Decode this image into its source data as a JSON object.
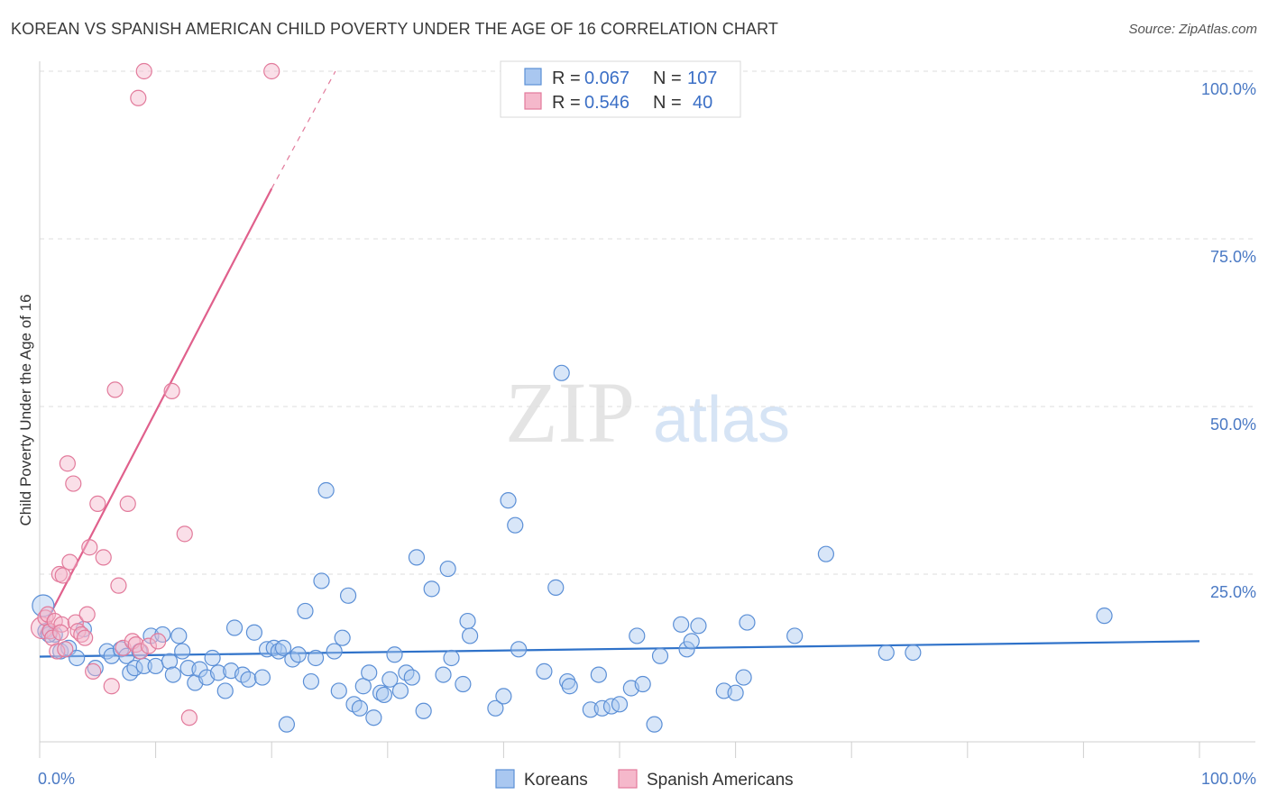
{
  "title": "KOREAN VS SPANISH AMERICAN CHILD POVERTY UNDER THE AGE OF 16 CORRELATION CHART",
  "source": "Source: ZipAtlas.com",
  "watermark": {
    "zip": "ZIP",
    "atlas": "atlas"
  },
  "colors": {
    "koreans_fill": "#a9c7f0",
    "koreans_stroke": "#5b8fd6",
    "koreans_line": "#2f72c9",
    "spanish_fill": "#f5b8cb",
    "spanish_stroke": "#e27a9b",
    "spanish_line": "#e0608c",
    "grid": "#dedede",
    "axis_text": "#4a79c4"
  },
  "legend": {
    "rows": [
      {
        "r_label": "R = ",
        "r_value": "0.067",
        "n_label": "N = ",
        "n_value": "107"
      },
      {
        "r_label": "R = ",
        "r_value": "0.546",
        "n_label": "N = ",
        "n_value": "40"
      }
    ]
  },
  "bottom_legend": [
    "Koreans",
    "Spanish Americans"
  ],
  "chart_data": {
    "type": "scatter",
    "title": "KOREAN VS SPANISH AMERICAN CHILD POVERTY UNDER THE AGE OF 16 CORRELATION CHART",
    "xlabel": "",
    "ylabel": "Child Poverty Under the Age of 16",
    "xlim": [
      0,
      100
    ],
    "ylim": [
      0,
      100
    ],
    "x_tick_labels": [
      "0.0%",
      "100.0%"
    ],
    "y_tick_labels": [
      "100.0%",
      "75.0%",
      "50.0%",
      "25.0%"
    ],
    "y_ticks": [
      100,
      75,
      50,
      25
    ],
    "grid": true,
    "legend_position": "top-center",
    "series": [
      {
        "name": "Koreans",
        "r": 0.067,
        "n": 107,
        "trend": {
          "x": [
            0,
            100
          ],
          "y": [
            12.7,
            15.0
          ]
        },
        "points": [
          [
            0.3,
            20.3
          ],
          [
            0.5,
            16.5
          ],
          [
            1.3,
            16.0
          ],
          [
            1.8,
            13.5
          ],
          [
            2.5,
            14.0
          ],
          [
            3.2,
            12.5
          ],
          [
            3.8,
            16.8
          ],
          [
            4.8,
            11.0
          ],
          [
            5.8,
            13.5
          ],
          [
            6.2,
            12.8
          ],
          [
            7.0,
            13.8
          ],
          [
            7.5,
            12.8
          ],
          [
            7.8,
            10.3
          ],
          [
            8.2,
            11.0
          ],
          [
            8.6,
            13.5
          ],
          [
            9.0,
            11.3
          ],
          [
            9.6,
            15.8
          ],
          [
            10.0,
            11.3
          ],
          [
            10.6,
            16.0
          ],
          [
            11.2,
            12.0
          ],
          [
            11.5,
            10.0
          ],
          [
            12.0,
            15.8
          ],
          [
            12.3,
            13.5
          ],
          [
            12.8,
            11.0
          ],
          [
            13.4,
            8.8
          ],
          [
            13.8,
            10.8
          ],
          [
            14.4,
            9.6
          ],
          [
            14.9,
            12.5
          ],
          [
            15.4,
            10.3
          ],
          [
            16.0,
            7.6
          ],
          [
            16.5,
            10.6
          ],
          [
            16.8,
            17.0
          ],
          [
            17.5,
            10.0
          ],
          [
            18.0,
            9.3
          ],
          [
            18.5,
            16.3
          ],
          [
            19.2,
            9.6
          ],
          [
            19.6,
            13.8
          ],
          [
            20.2,
            14.0
          ],
          [
            20.6,
            13.5
          ],
          [
            21.0,
            14.0
          ],
          [
            21.3,
            2.6
          ],
          [
            21.8,
            12.3
          ],
          [
            22.3,
            13.0
          ],
          [
            22.9,
            19.5
          ],
          [
            23.4,
            9.0
          ],
          [
            23.8,
            12.5
          ],
          [
            24.3,
            24.0
          ],
          [
            24.7,
            37.5
          ],
          [
            25.4,
            13.5
          ],
          [
            25.8,
            7.6
          ],
          [
            26.1,
            15.5
          ],
          [
            26.6,
            21.8
          ],
          [
            27.1,
            5.6
          ],
          [
            27.6,
            5.0
          ],
          [
            27.9,
            8.3
          ],
          [
            28.4,
            10.3
          ],
          [
            28.8,
            3.6
          ],
          [
            29.4,
            7.3
          ],
          [
            29.7,
            7.0
          ],
          [
            30.2,
            9.3
          ],
          [
            30.6,
            13.0
          ],
          [
            31.1,
            7.6
          ],
          [
            31.6,
            10.3
          ],
          [
            32.1,
            9.6
          ],
          [
            32.5,
            27.5
          ],
          [
            33.1,
            4.6
          ],
          [
            33.8,
            22.8
          ],
          [
            34.8,
            10.0
          ],
          [
            35.2,
            25.8
          ],
          [
            35.5,
            12.5
          ],
          [
            36.5,
            8.6
          ],
          [
            36.9,
            18.0
          ],
          [
            37.1,
            15.8
          ],
          [
            39.3,
            5.0
          ],
          [
            40.0,
            6.8
          ],
          [
            40.4,
            36.0
          ],
          [
            41.0,
            32.3
          ],
          [
            41.3,
            13.8
          ],
          [
            43.5,
            10.5
          ],
          [
            44.5,
            23.0
          ],
          [
            45.0,
            55.0
          ],
          [
            45.5,
            9.0
          ],
          [
            45.7,
            8.3
          ],
          [
            47.5,
            4.8
          ],
          [
            48.2,
            10.0
          ],
          [
            48.5,
            5.0
          ],
          [
            49.3,
            5.3
          ],
          [
            50.0,
            5.6
          ],
          [
            51.0,
            8.0
          ],
          [
            51.5,
            15.8
          ],
          [
            52.0,
            8.6
          ],
          [
            53.0,
            2.6
          ],
          [
            53.5,
            12.8
          ],
          [
            55.3,
            17.5
          ],
          [
            55.8,
            13.8
          ],
          [
            56.2,
            15.0
          ],
          [
            56.8,
            17.3
          ],
          [
            59.0,
            7.6
          ],
          [
            60.0,
            7.3
          ],
          [
            60.7,
            9.6
          ],
          [
            61.0,
            17.8
          ],
          [
            65.1,
            15.8
          ],
          [
            67.8,
            28.0
          ],
          [
            73.0,
            13.3
          ],
          [
            75.3,
            13.3
          ],
          [
            91.8,
            18.8
          ],
          [
            0.8,
            16.0
          ]
        ]
      },
      {
        "name": "Spanish Americans",
        "r": 0.546,
        "n": 40,
        "trend": {
          "x": [
            0,
            20.0
          ],
          "y": [
            16.0,
            82.5
          ]
        },
        "trend_dashed": {
          "x": [
            20.0,
            25.5
          ],
          "y": [
            82.5,
            100.0
          ]
        },
        "points": [
          [
            0.2,
            17.0
          ],
          [
            0.5,
            18.5
          ],
          [
            0.7,
            19.0
          ],
          [
            0.9,
            16.5
          ],
          [
            1.1,
            15.5
          ],
          [
            1.3,
            18.0
          ],
          [
            1.5,
            13.5
          ],
          [
            1.7,
            25.0
          ],
          [
            1.9,
            17.5
          ],
          [
            2.0,
            24.8
          ],
          [
            2.2,
            13.8
          ],
          [
            2.4,
            41.5
          ],
          [
            2.6,
            26.8
          ],
          [
            2.9,
            38.5
          ],
          [
            3.1,
            17.8
          ],
          [
            3.3,
            16.5
          ],
          [
            3.6,
            16.0
          ],
          [
            3.9,
            15.5
          ],
          [
            4.1,
            19.0
          ],
          [
            4.3,
            29.0
          ],
          [
            4.6,
            10.5
          ],
          [
            5.0,
            35.5
          ],
          [
            5.5,
            27.5
          ],
          [
            6.2,
            8.3
          ],
          [
            6.5,
            52.5
          ],
          [
            6.8,
            23.3
          ],
          [
            7.2,
            14.0
          ],
          [
            7.6,
            35.5
          ],
          [
            8.0,
            15.0
          ],
          [
            8.3,
            14.5
          ],
          [
            8.7,
            13.5
          ],
          [
            9.4,
            14.3
          ],
          [
            10.2,
            15.0
          ],
          [
            12.5,
            31.0
          ],
          [
            8.5,
            96.0
          ],
          [
            9.0,
            100.0
          ],
          [
            11.4,
            52.3
          ],
          [
            12.9,
            3.6
          ],
          [
            20.0,
            100.0
          ],
          [
            1.8,
            16.3
          ]
        ]
      }
    ]
  }
}
